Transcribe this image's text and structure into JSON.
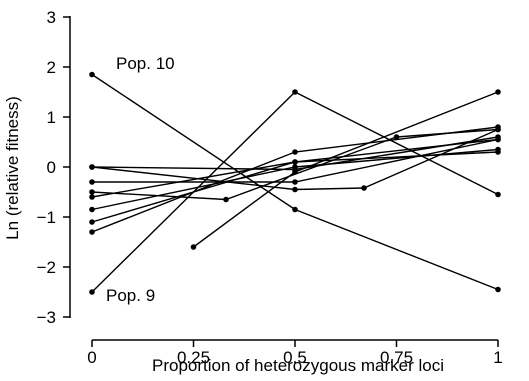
{
  "chart_data": {
    "type": "line",
    "title": "",
    "xlabel": "Proportion of heterozygous marker loci",
    "ylabel": "Ln (relative fitness)",
    "xlim": [
      0,
      1
    ],
    "ylim": [
      -3,
      3
    ],
    "x_ticks": [
      {
        "value": 0,
        "label": "0"
      },
      {
        "value": 0.25,
        "label": "0.25"
      },
      {
        "value": 0.5,
        "label": "0.5"
      },
      {
        "value": 0.75,
        "label": "0.75"
      },
      {
        "value": 1,
        "label": "1"
      }
    ],
    "y_ticks": [
      {
        "value": -3,
        "label": "−3"
      },
      {
        "value": -2,
        "label": "−2"
      },
      {
        "value": -1,
        "label": "−1"
      },
      {
        "value": 0,
        "label": "0"
      },
      {
        "value": 1,
        "label": "1"
      },
      {
        "value": 2,
        "label": "2"
      },
      {
        "value": 3,
        "label": "3"
      }
    ],
    "grid": false,
    "legend": "none",
    "series": [
      {
        "points": [
          [
            0,
            1.85
          ],
          [
            0.5,
            -0.85
          ],
          [
            1,
            -2.45
          ]
        ]
      },
      {
        "points": [
          [
            0,
            -2.5
          ],
          [
            0.5,
            1.5
          ],
          [
            1,
            -0.55
          ]
        ]
      },
      {
        "points": [
          [
            0.25,
            -1.6
          ],
          [
            0.5,
            -0.1
          ],
          [
            1,
            1.5
          ]
        ]
      },
      {
        "points": [
          [
            0,
            0.0
          ],
          [
            0.5,
            -0.45
          ],
          [
            0.67,
            -0.42
          ],
          [
            1,
            0.75
          ]
        ]
      },
      {
        "points": [
          [
            0,
            -0.3
          ],
          [
            0.5,
            -0.3
          ],
          [
            1,
            0.55
          ]
        ]
      },
      {
        "points": [
          [
            0,
            -0.5
          ],
          [
            0.33,
            -0.65
          ],
          [
            0.75,
            0.6
          ],
          [
            1,
            0.75
          ]
        ]
      },
      {
        "points": [
          [
            0,
            -0.6
          ],
          [
            0.5,
            0.1
          ],
          [
            1,
            0.55
          ]
        ]
      },
      {
        "points": [
          [
            0,
            -0.85
          ],
          [
            0.5,
            0.0
          ],
          [
            1,
            0.35
          ]
        ]
      },
      {
        "points": [
          [
            0,
            -1.1
          ],
          [
            0.5,
            0.1
          ],
          [
            1,
            0.3
          ]
        ]
      },
      {
        "points": [
          [
            0,
            -1.3
          ],
          [
            0.5,
            0.3
          ],
          [
            1,
            0.8
          ]
        ]
      },
      {
        "points": [
          [
            0,
            0.0
          ],
          [
            0.5,
            -0.05
          ],
          [
            1,
            0.6
          ]
        ]
      }
    ],
    "annotations": [
      {
        "text": "Pop. 10",
        "x": 0,
        "y": 1.85
      },
      {
        "text": "Pop. 9",
        "x": 0,
        "y": -2.5
      }
    ]
  }
}
